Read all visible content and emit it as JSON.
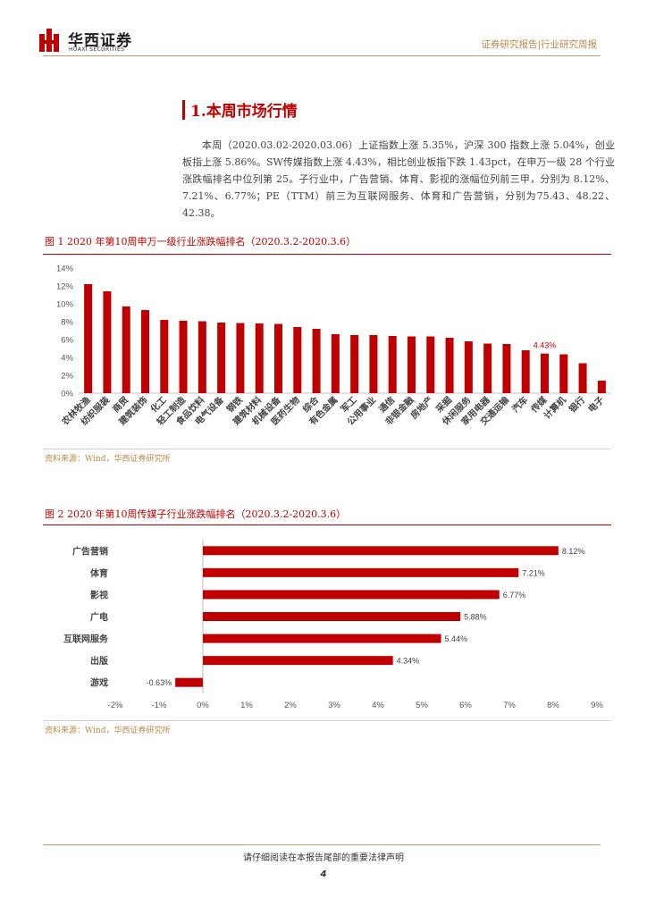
{
  "header": {
    "logo_cn": "华西证券",
    "logo_en": "HUAXI SECURITIES",
    "right_text": "证券研究报告|行业研究周报",
    "brand_color": "#c00000",
    "accent_color": "#c59b66"
  },
  "section": {
    "title": "1.本周市场行情",
    "paragraph": "本周（2020.03.02-2020.03.06）上证指数上涨 5.35%，沪深 300 指数上涨 5.04%，创业板指上涨 5.86%。SW传媒指数上涨 4.43%，相比创业板指下跌 1.43pct，在申万一级 28 个行业涨跌幅排名中位列第 25。子行业中，广告营销、体育、影视的涨幅位列前三甲，分别为 8.12%、7.21%、6.77%；PE（TTM）前三为互联网服务、体育和广告营销，分别为75.43、48.22、42.38。"
  },
  "figure1": {
    "title": "图 1 2020 年第10周申万一级行业涨跌幅排名（2020.3.2-2020.3.6）",
    "source": "资料来源：Wind，华西证券研究所"
  },
  "figure2": {
    "title": "图 2 2020 年第10周传媒子行业涨跌幅排名（2020.3.2-2020.3.6）",
    "source": "资料来源：Wind，华西证券研究所"
  },
  "chart_data": [
    {
      "type": "bar",
      "orientation": "vertical",
      "categories": [
        "农林牧渔",
        "纺织服装",
        "商贸",
        "建筑装饰",
        "化工",
        "轻工制造",
        "食品饮料",
        "电气设备",
        "钢铁",
        "建筑材料",
        "机械设备",
        "医药生物",
        "综合",
        "有色金属",
        "军工",
        "公用事业",
        "通信",
        "非银金融",
        "房地产",
        "采掘",
        "休闲服务",
        "家用电器",
        "交通运输",
        "汽车",
        "传媒",
        "计算机",
        "银行",
        "电子"
      ],
      "values": [
        12.2,
        11.4,
        9.7,
        9.3,
        8.2,
        8.1,
        8.05,
        7.9,
        7.85,
        7.8,
        7.75,
        7.4,
        7.2,
        6.6,
        6.5,
        6.5,
        6.4,
        6.35,
        6.35,
        6.2,
        5.8,
        5.55,
        5.5,
        4.8,
        4.43,
        4.35,
        3.35,
        1.4
      ],
      "highlight": {
        "category": "传媒",
        "label": "4.43%"
      },
      "yticks": [
        "0%",
        "2%",
        "4%",
        "6%",
        "8%",
        "10%",
        "12%",
        "14%"
      ],
      "ylim": [
        0,
        14
      ],
      "bar_color": "#c00000",
      "grid": false
    },
    {
      "type": "bar",
      "orientation": "horizontal",
      "categories": [
        "广告营销",
        "体育",
        "影视",
        "广电",
        "互联网服务",
        "出版",
        "游戏"
      ],
      "values": [
        8.12,
        7.21,
        6.77,
        5.88,
        5.44,
        4.34,
        -0.63
      ],
      "labels": [
        "8.12%",
        "7.21%",
        "6.77%",
        "5.88%",
        "5.44%",
        "4.34%",
        "-0.63%"
      ],
      "xticks": [
        "-2%",
        "-1%",
        "0%",
        "1%",
        "2%",
        "3%",
        "4%",
        "5%",
        "6%",
        "7%",
        "8%",
        "9%"
      ],
      "xlim": [
        -2,
        9
      ],
      "bar_color": "#c00000",
      "grid": false
    }
  ],
  "footer": {
    "disclaimer": "请仔细阅读在本报告尾部的重要法律声明",
    "page_number": "4"
  }
}
